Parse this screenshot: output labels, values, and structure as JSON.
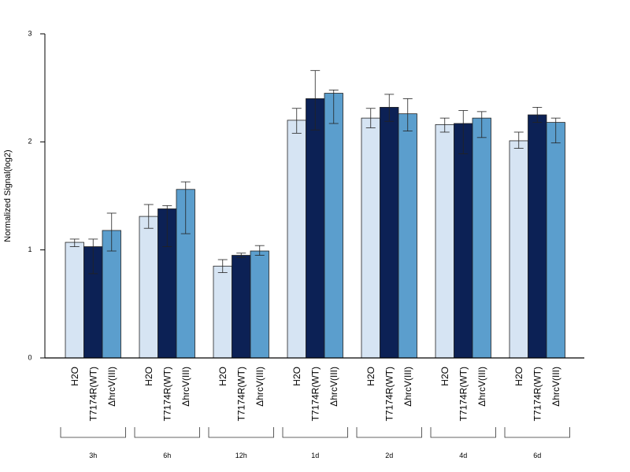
{
  "chart_data": {
    "type": "bar",
    "ylabel": "Normalized Signal(log2)",
    "xlabel": "",
    "ylim": [
      0,
      3
    ],
    "yticks": [
      0,
      1,
      2,
      3
    ],
    "bar_categories": [
      "H2O",
      "T7174R(WT)",
      "ΔhrcV(III)"
    ],
    "colors": [
      "#d6e4f3",
      "#0c2155",
      "#5b9ecd"
    ],
    "groups": [
      "3h",
      "6h",
      "12h",
      "1d",
      "2d",
      "4d",
      "6d"
    ],
    "series": [
      {
        "category": "H2O",
        "values": [
          1.07,
          1.31,
          0.85,
          2.2,
          2.22,
          2.16,
          2.01
        ],
        "err_low": [
          1.03,
          1.2,
          0.79,
          2.08,
          2.13,
          2.09,
          1.94
        ],
        "err_high": [
          1.1,
          1.42,
          0.91,
          2.31,
          2.31,
          2.22,
          2.09
        ]
      },
      {
        "category": "T7174R(WT)",
        "values": [
          1.03,
          1.38,
          0.95,
          2.4,
          2.32,
          2.17,
          2.25
        ],
        "err_low": [
          0.78,
          1.03,
          0.93,
          2.11,
          2.19,
          1.89,
          2.18
        ],
        "err_high": [
          1.1,
          1.41,
          0.97,
          2.66,
          2.44,
          2.29,
          2.32
        ]
      },
      {
        "category": "ΔhrcV(III)",
        "values": [
          1.18,
          1.56,
          0.99,
          2.45,
          2.26,
          2.22,
          2.18
        ],
        "err_low": [
          0.99,
          1.15,
          0.95,
          2.17,
          2.1,
          2.04,
          1.99
        ],
        "err_high": [
          1.34,
          1.63,
          1.04,
          2.48,
          2.4,
          2.28,
          2.22
        ]
      }
    ],
    "grid": false,
    "legend": "none"
  }
}
